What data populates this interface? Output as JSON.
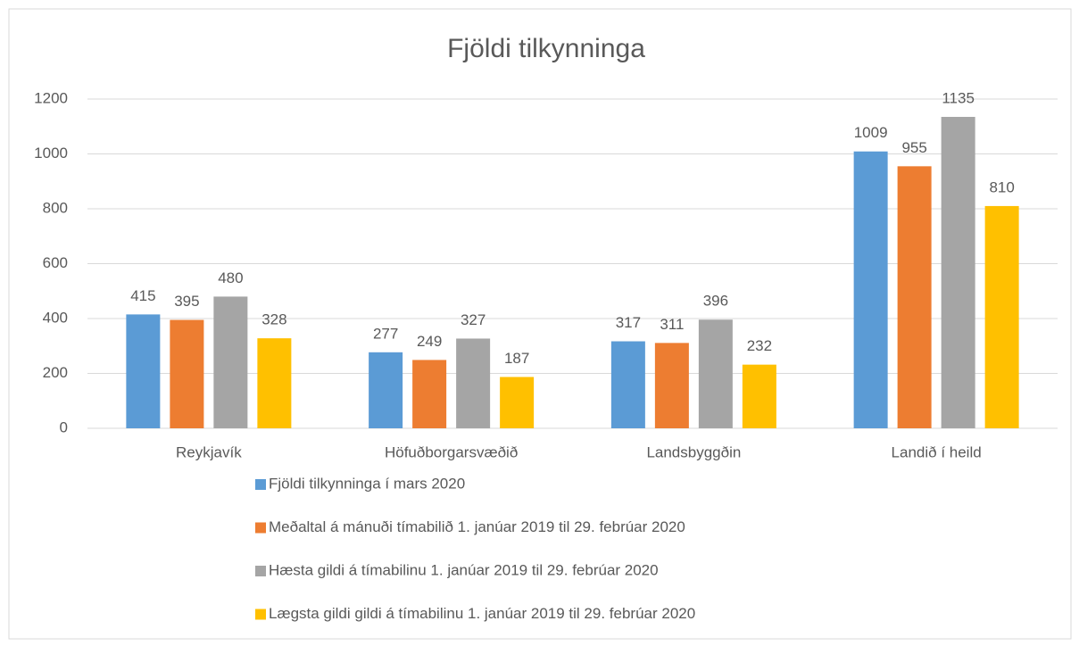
{
  "chart_data": {
    "type": "bar",
    "title": "Fjöldi tilkynninga",
    "categories": [
      "Reykjavík",
      "Höfuðborgarsvæðið",
      "Landsbyggðin",
      "Landið í heild"
    ],
    "series": [
      {
        "name": "Fjöldi tilkynninga í mars 2020",
        "color": "#5b9bd5",
        "values": [
          415,
          277,
          317,
          1009
        ]
      },
      {
        "name": "Meðaltal á mánuði tímabilið 1. janúar 2019 til 29. febrúar 2020",
        "color": "#ed7d31",
        "values": [
          395,
          249,
          311,
          955
        ]
      },
      {
        "name": "Hæsta gildi á tímabilinu 1. janúar 2019 til 29. febrúar 2020",
        "color": "#a5a5a5",
        "values": [
          480,
          327,
          396,
          1135
        ]
      },
      {
        "name": "Lægsta gildi gildi á tímabilinu 1. janúar 2019 til 29. febrúar 2020",
        "color": "#ffc000",
        "values": [
          328,
          187,
          232,
          810
        ]
      }
    ],
    "ylim": [
      0,
      1200
    ],
    "yticks": [
      0,
      200,
      400,
      600,
      800,
      1000,
      1200
    ],
    "grid": true,
    "legend": "bottom"
  }
}
